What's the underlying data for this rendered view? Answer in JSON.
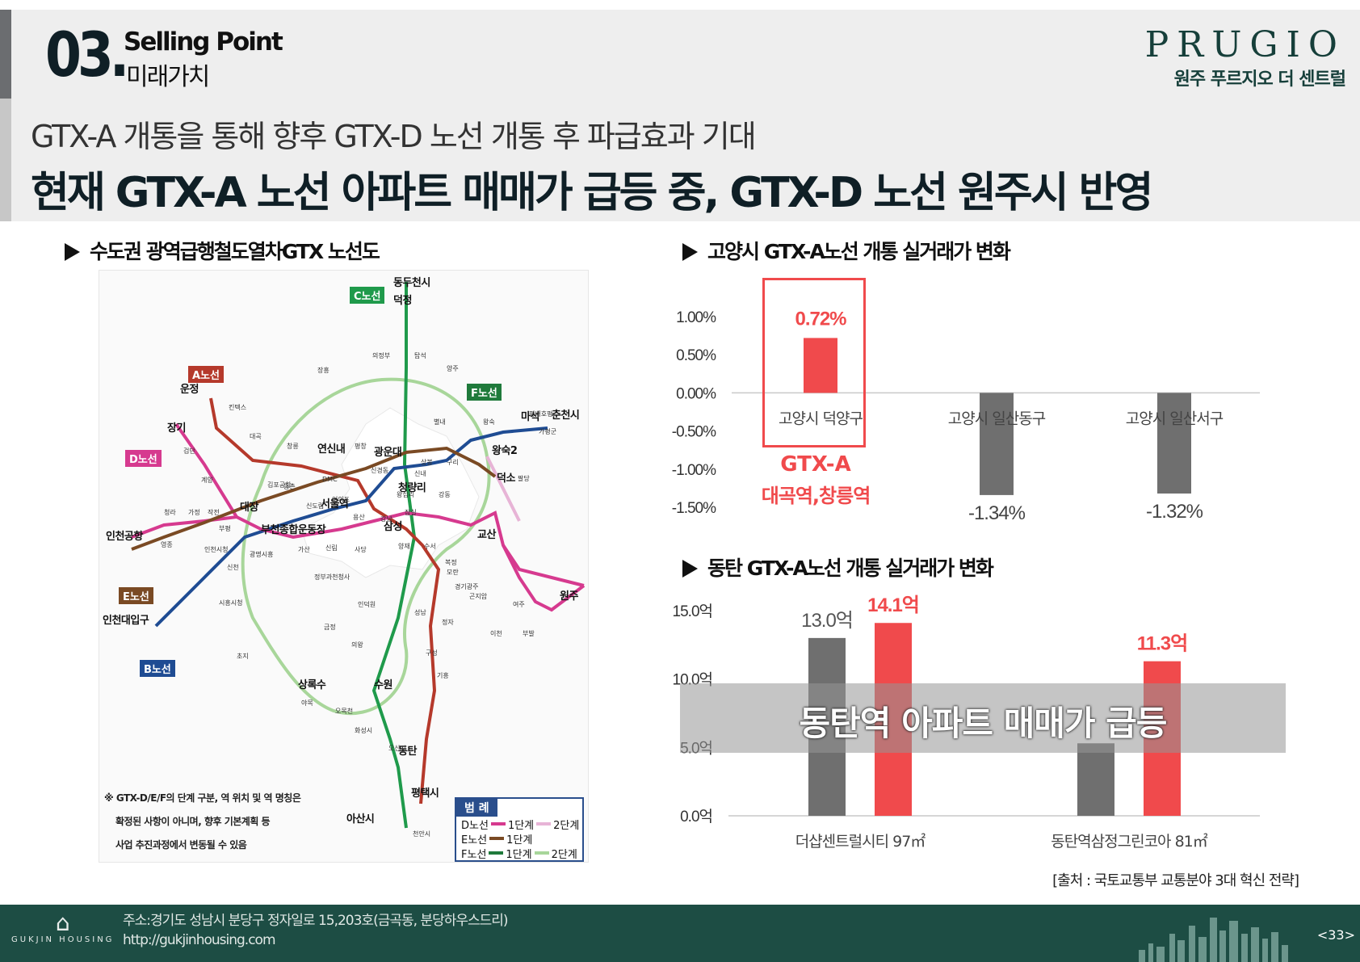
{
  "section": {
    "number": "03.",
    "label_en": "Selling Point",
    "label_ko": "미래가치"
  },
  "brand": {
    "name": "PRUGIO",
    "project": "원주 푸르지오 더 센트럴"
  },
  "subtitle": "GTX-A 개통을 통해 향후 GTX-D 노선 개통 후 파급효과 기대",
  "headline": "현재 GTX-A 노선 아파트 매매가 급등 중, GTX-D 노선 원주시 반영",
  "map": {
    "title": "수도권 광역급행철도열차GTX 노선도",
    "line_labels": {
      "a": "A노선",
      "b": "B노선",
      "c": "C노선",
      "d": "D노선",
      "e": "E노선",
      "f": "F노선"
    },
    "major_stations": [
      "동두천시",
      "덕정",
      "운정",
      "장기",
      "연신내",
      "광운대",
      "왕숙2",
      "마석",
      "춘천시",
      "덕소",
      "청량리",
      "서울역",
      "대장",
      "인천공항",
      "부천종합운동장",
      "삼성",
      "교산",
      "인천대입구",
      "원주",
      "상록수",
      "수원",
      "동탄",
      "평택시",
      "아산시"
    ],
    "minor_stations": [
      "의정부",
      "탑석",
      "장흥",
      "양주",
      "킨텍스",
      "창릉",
      "별내",
      "왕숙",
      "평내호평",
      "가평군",
      "대곡",
      "검단",
      "평창",
      "신내",
      "구리",
      "상봉",
      "김포공항",
      "등촌",
      "DMC",
      "신경동",
      "왕십리",
      "강동",
      "팔당",
      "계양",
      "청라",
      "가정",
      "작전",
      "부평",
      "신도림",
      "여의도",
      "용산",
      "영종",
      "인천시청",
      "광명시흥",
      "가산",
      "신림",
      "사당",
      "강남",
      "잠실",
      "양재",
      "수서",
      "복정",
      "시흥시청",
      "신천",
      "정부과천청사",
      "인덕원",
      "모란",
      "경기광주",
      "곤지암",
      "여주",
      "성남",
      "정자",
      "이천",
      "부발",
      "금정",
      "의왕",
      "구성",
      "초지",
      "기흥",
      "야목",
      "오목천",
      "화성시",
      "오산시",
      "천안시"
    ],
    "legend": {
      "title": "범 례",
      "rows": [
        {
          "line": "D노선",
          "stage1": "1단계",
          "stage2": "2단계"
        },
        {
          "line": "E노선",
          "stage1": "1단계",
          "stage2": ""
        },
        {
          "line": "F노선",
          "stage1": "1단계",
          "stage2": "2단계"
        }
      ]
    },
    "note": [
      "※ GTX-D/E/F의 단계 구분, 역 위치 및 역 명칭은",
      "확정된 사항이 아니며, 향후 기본계획 등",
      "사업 추진과정에서 변동될 수 있음"
    ]
  },
  "goyang": {
    "title": "고양시 GTX-A노선 개통 실거래가 변화",
    "highlight_line": "GTX-A",
    "highlight_stations": "대곡역,창릉역"
  },
  "dongtan": {
    "title": "동탄 GTX-A노선 개통 실거래가 변화",
    "overlay": "동탄역 아파트 매매가 급등"
  },
  "chart_data": [
    {
      "type": "bar",
      "title": "고양시 GTX-A노선 개통 실거래가 변화",
      "categories": [
        "고양시 덕양구",
        "고양시 일산동구",
        "고양시 일산서구"
      ],
      "values": [
        0.72,
        -1.34,
        -1.32
      ],
      "value_labels": [
        "0.72%",
        "-1.34%",
        "-1.32%"
      ],
      "ylim": [
        -1.5,
        1.0
      ],
      "yticks": [
        1.0,
        0.5,
        0.0,
        -0.5,
        -1.0,
        -1.5
      ],
      "ytick_labels": [
        "1.00%",
        "0.50%",
        "0.00%",
        "-0.50%",
        "-1.00%",
        "-1.50%"
      ],
      "colors": [
        "#f04a4c",
        "#6f6f6f",
        "#6f6f6f"
      ],
      "grid": false
    },
    {
      "type": "bar",
      "title": "동탄 GTX-A노선 개통 실거래가 변화",
      "categories": [
        "더샵센트럴시티 97㎡",
        "동탄역삼정그린코아 81㎡"
      ],
      "series": [
        {
          "values": [
            13.0,
            5.3
          ],
          "color": "#6f6f6f"
        },
        {
          "values": [
            14.1,
            11.3
          ],
          "color": "#f04a4c"
        }
      ],
      "value_labels": [
        [
          "13.0억",
          "14.1억"
        ],
        [
          "",
          "11.3억"
        ]
      ],
      "ylim": [
        0,
        15
      ],
      "yticks": [
        15,
        10,
        5,
        0
      ],
      "ytick_labels": [
        "15.0억",
        "10.0억",
        "5.0억",
        "0.0억"
      ],
      "grid": false
    }
  ],
  "source": "[출처 : 국토교통부 교통분야 3대 혁신 전략]",
  "footer": {
    "logo_text": "GUKJIN HOUSING",
    "address": "주소:경기도 성남시 분당구 정자일로 15,203호(금곡동, 분당하우스드리)",
    "url": "http://gukjinhousing.com",
    "page": "<33>"
  },
  "colors": {
    "red": "#f04a4c",
    "gray_bar": "#6f6f6f",
    "footer": "#1d4d44",
    "brand": "#163f3a",
    "line_a": "#b5392b",
    "line_b": "#1f4c93",
    "line_c": "#1f9a4b",
    "line_d": "#d63a8f",
    "line_e": "#7a4a24",
    "line_f": "#9ccf8a"
  }
}
